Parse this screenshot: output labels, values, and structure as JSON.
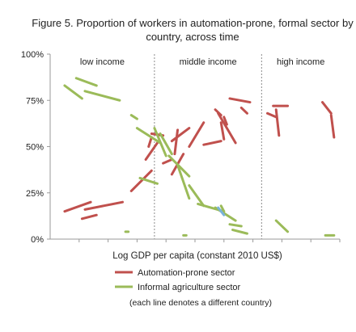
{
  "chart_data": {
    "type": "line",
    "title_lines": [
      "Figure 5.  Proportion of workers in automation-prone, formal sector by",
      "country, across time"
    ],
    "xlabel": "Log GDP per capita (constant 2010 US$)",
    "ylabel": "",
    "x_range": [
      0,
      100
    ],
    "ylim": [
      0,
      100
    ],
    "yticks": [
      "0%",
      "25%",
      "50%",
      "75%",
      "100%"
    ],
    "ytick_values": [
      0,
      25,
      50,
      75,
      100
    ],
    "grid": false,
    "regions": [
      {
        "label": "low income",
        "from": 0,
        "to": 36
      },
      {
        "label": "middle income",
        "from": 36,
        "to": 73
      },
      {
        "label": "high income",
        "from": 73,
        "to": 100
      }
    ],
    "region_dividers": [
      36,
      73
    ],
    "legend_placement": "below",
    "legend": [
      {
        "label": "Automation-prone sector",
        "color": "#c0504d"
      },
      {
        "label": "Informal agriculture sector",
        "color": "#9bbb59"
      }
    ],
    "note": "(each line denotes a different country)",
    "series": [
      {
        "color": "#c0504d",
        "segments": [
          [
            [
              5,
              15
            ],
            [
              14,
              20
            ]
          ],
          [
            [
              11,
              11
            ],
            [
              16,
              13
            ]
          ],
          [
            [
              12,
              16
            ],
            [
              25,
              20
            ]
          ],
          [
            [
              28,
              26
            ],
            [
              35,
              37
            ]
          ],
          [
            [
              33,
              43
            ],
            [
              37,
              52
            ]
          ],
          [
            [
              35,
              57
            ],
            [
              39,
              56
            ]
          ],
          [
            [
              34,
              50
            ],
            [
              35,
              55
            ]
          ],
          [
            [
              39,
              41
            ],
            [
              42,
              43
            ]
          ],
          [
            [
              42,
              35
            ],
            [
              46,
              46
            ]
          ],
          [
            [
              42,
              53
            ],
            [
              48,
              60
            ]
          ],
          [
            [
              43,
              46
            ],
            [
              44,
              59
            ]
          ],
          [
            [
              48,
              50
            ],
            [
              53,
              63
            ]
          ],
          [
            [
              53,
              51
            ],
            [
              59,
              53
            ]
          ],
          [
            [
              57,
              70
            ],
            [
              59,
              67
            ]
          ],
          [
            [
              58,
              68
            ],
            [
              64,
              52
            ]
          ],
          [
            [
              59,
              63
            ],
            [
              60,
              54
            ]
          ],
          [
            [
              60,
              66
            ],
            [
              61,
              62
            ]
          ],
          [
            [
              62,
              76
            ],
            [
              69,
              74
            ]
          ],
          [
            [
              66,
              71
            ],
            [
              68,
              68
            ]
          ],
          [
            [
              75,
              68
            ],
            [
              78,
              66
            ]
          ],
          [
            [
              77,
              72
            ],
            [
              82,
              72
            ]
          ],
          [
            [
              78,
              70
            ],
            [
              79,
              56
            ]
          ],
          [
            [
              94,
              74
            ],
            [
              97,
              68
            ]
          ],
          [
            [
              97,
              67
            ],
            [
              98,
              55
            ]
          ]
        ]
      },
      {
        "color": "#9bbb59",
        "segments": [
          [
            [
              5,
              83
            ],
            [
              11,
              76
            ]
          ],
          [
            [
              9,
              87
            ],
            [
              16,
              83
            ]
          ],
          [
            [
              12,
              80
            ],
            [
              24,
              75
            ]
          ],
          [
            [
              28,
              67
            ],
            [
              30,
              65
            ]
          ],
          [
            [
              30,
              60
            ],
            [
              38,
              52
            ]
          ],
          [
            [
              31,
              33
            ],
            [
              37,
              30
            ]
          ],
          [
            [
              36,
              60
            ],
            [
              40,
              45
            ]
          ],
          [
            [
              38,
              57
            ],
            [
              42,
              46
            ]
          ],
          [
            [
              41,
              45
            ],
            [
              48,
              34
            ]
          ],
          [
            [
              44,
              40
            ],
            [
              48,
              22
            ]
          ],
          [
            [
              48,
              29
            ],
            [
              53,
              18
            ]
          ],
          [
            [
              51,
              19
            ],
            [
              60,
              15
            ]
          ],
          [
            [
              57,
              17
            ],
            [
              64,
              10
            ]
          ],
          [
            [
              59,
              18
            ],
            [
              60,
              15
            ]
          ],
          [
            [
              62,
              8
            ],
            [
              66,
              7
            ]
          ],
          [
            [
              63,
              5
            ],
            [
              68,
              3
            ]
          ],
          [
            [
              78,
              10
            ],
            [
              82,
              4
            ]
          ],
          [
            [
              26,
              4
            ],
            [
              27,
              4
            ]
          ],
          [
            [
              46,
              2
            ],
            [
              47,
              2
            ]
          ],
          [
            [
              95,
              2
            ],
            [
              98,
              2
            ]
          ]
        ]
      },
      {
        "color": "#7ab3d9",
        "segments": [
          [
            [
              58,
              17
            ],
            [
              60,
              13
            ]
          ]
        ]
      }
    ]
  }
}
